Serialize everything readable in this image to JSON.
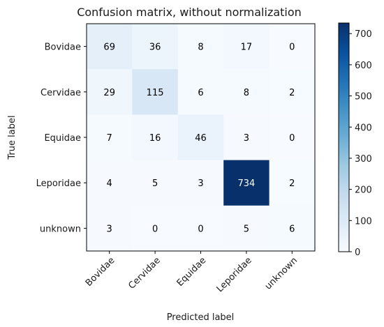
{
  "chart_data": {
    "type": "heatmap",
    "title": "Confusion matrix, without normalization",
    "xlabel": "Predicted label",
    "ylabel": "True label",
    "x_categories": [
      "Bovidae",
      "Cervidae",
      "Equidae",
      "Leporidae",
      "unknown"
    ],
    "y_categories": [
      "Bovidae",
      "Cervidae",
      "Equidae",
      "Leporidae",
      "unknown"
    ],
    "values": [
      [
        69,
        36,
        8,
        17,
        0
      ],
      [
        29,
        115,
        6,
        8,
        2
      ],
      [
        7,
        16,
        46,
        3,
        0
      ],
      [
        4,
        5,
        3,
        734,
        2
      ],
      [
        3,
        0,
        0,
        5,
        6
      ]
    ],
    "colormap": "Blues",
    "colorbar": {
      "min": 0,
      "max": 734,
      "ticks": [
        0,
        100,
        200,
        300,
        400,
        500,
        600,
        700
      ]
    },
    "grid": false,
    "colors": {
      "low": "#f7fbff",
      "high": "#08306b"
    }
  }
}
